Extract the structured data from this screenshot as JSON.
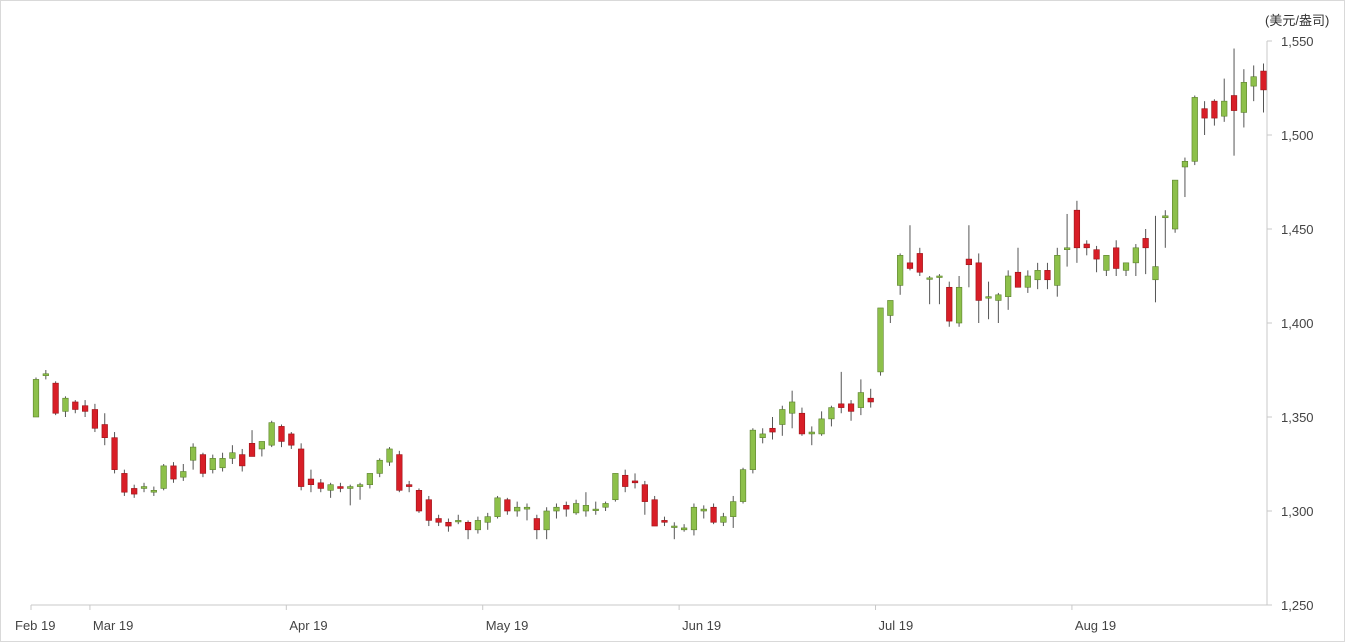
{
  "chart_data": {
    "type": "candlestick",
    "unit_label": "(美元/盎司)",
    "title": "",
    "xlabel": "",
    "ylabel": "",
    "ylim": [
      1250,
      1550
    ],
    "yticks": [
      1250,
      1300,
      1350,
      1400,
      1450,
      1500,
      1550
    ],
    "ytick_labels": [
      "1,250",
      "1,300",
      "1,350",
      "1,400",
      "1,450",
      "1,500",
      "1,550"
    ],
    "xtick_labels": [
      "Feb 19",
      "Mar 19",
      "Apr 19",
      "May 19",
      "Jun 19",
      "Jul 19",
      "Aug 19"
    ],
    "xtick_index": [
      0,
      6,
      26,
      46,
      66,
      86,
      106
    ],
    "colors": {
      "up": "#8dc04a",
      "down": "#d81e27",
      "wick": "#555555",
      "axis": "#c8c8c8"
    },
    "candles": [
      [
        1350,
        1371,
        1350,
        1370
      ],
      [
        1372,
        1375,
        1370,
        1373
      ],
      [
        1368,
        1369,
        1351,
        1352
      ],
      [
        1353,
        1361,
        1350,
        1360
      ],
      [
        1358,
        1359,
        1352,
        1354
      ],
      [
        1356,
        1359,
        1350,
        1353
      ],
      [
        1354,
        1357,
        1342,
        1344
      ],
      [
        1346,
        1352,
        1335,
        1339
      ],
      [
        1339,
        1342,
        1320,
        1322
      ],
      [
        1320,
        1322,
        1308,
        1310
      ],
      [
        1312,
        1314,
        1307,
        1309
      ],
      [
        1312,
        1315,
        1310,
        1313
      ],
      [
        1310,
        1313,
        1308,
        1311
      ],
      [
        1312,
        1325,
        1311,
        1324
      ],
      [
        1324,
        1326,
        1315,
        1317
      ],
      [
        1318,
        1325,
        1316,
        1321
      ],
      [
        1327,
        1336,
        1322,
        1334
      ],
      [
        1330,
        1331,
        1318,
        1320
      ],
      [
        1322,
        1330,
        1320,
        1328
      ],
      [
        1323,
        1331,
        1321,
        1328
      ],
      [
        1328,
        1335,
        1325,
        1331
      ],
      [
        1330,
        1333,
        1321,
        1324
      ],
      [
        1336,
        1343,
        1329,
        1329
      ],
      [
        1333,
        1337,
        1329,
        1337
      ],
      [
        1335,
        1348,
        1334,
        1347
      ],
      [
        1345,
        1346,
        1334,
        1337
      ],
      [
        1341,
        1342,
        1333,
        1335
      ],
      [
        1333,
        1336,
        1311,
        1313
      ],
      [
        1317,
        1322,
        1310,
        1314
      ],
      [
        1315,
        1317,
        1310,
        1312
      ],
      [
        1311,
        1315,
        1307,
        1314
      ],
      [
        1313,
        1315,
        1310,
        1312
      ],
      [
        1312,
        1314,
        1303,
        1313
      ],
      [
        1313,
        1315,
        1306,
        1314
      ],
      [
        1314,
        1320,
        1312,
        1320
      ],
      [
        1320,
        1328,
        1318,
        1327
      ],
      [
        1326,
        1334,
        1324,
        1333
      ],
      [
        1330,
        1332,
        1310,
        1311
      ],
      [
        1314,
        1316,
        1310,
        1313
      ],
      [
        1311,
        1312,
        1299,
        1300
      ],
      [
        1306,
        1308,
        1292,
        1295
      ],
      [
        1296,
        1298,
        1292,
        1294
      ],
      [
        1294,
        1296,
        1289,
        1292
      ],
      [
        1295,
        1298,
        1293,
        1295
      ],
      [
        1294,
        1295,
        1285,
        1290
      ],
      [
        1290,
        1297,
        1288,
        1295
      ],
      [
        1294,
        1299,
        1290,
        1297
      ],
      [
        1297,
        1308,
        1296,
        1307
      ],
      [
        1306,
        1307,
        1298,
        1300
      ],
      [
        1300,
        1305,
        1297,
        1302
      ],
      [
        1301,
        1304,
        1295,
        1302
      ],
      [
        1296,
        1298,
        1285,
        1290
      ],
      [
        1290,
        1302,
        1285,
        1300
      ],
      [
        1300,
        1304,
        1296,
        1302
      ],
      [
        1303,
        1305,
        1297,
        1301
      ],
      [
        1299,
        1306,
        1298,
        1304
      ],
      [
        1300,
        1310,
        1297,
        1303
      ],
      [
        1301,
        1305,
        1298,
        1301
      ],
      [
        1302,
        1305,
        1300,
        1304
      ],
      [
        1306,
        1320,
        1305,
        1320
      ],
      [
        1319,
        1322,
        1310,
        1313
      ],
      [
        1316,
        1320,
        1312,
        1315
      ],
      [
        1314,
        1316,
        1298,
        1305
      ],
      [
        1306,
        1308,
        1292,
        1292
      ],
      [
        1295,
        1297,
        1292,
        1294
      ],
      [
        1292,
        1294,
        1285,
        1292
      ],
      [
        1290,
        1293,
        1289,
        1291
      ],
      [
        1290,
        1304,
        1287,
        1302
      ],
      [
        1300,
        1303,
        1296,
        1301
      ],
      [
        1302,
        1304,
        1293,
        1294
      ],
      [
        1294,
        1299,
        1292,
        1297
      ],
      [
        1297,
        1308,
        1291,
        1305
      ],
      [
        1305,
        1323,
        1304,
        1322
      ],
      [
        1322,
        1344,
        1320,
        1343
      ],
      [
        1339,
        1344,
        1336,
        1341
      ],
      [
        1344,
        1350,
        1338,
        1342
      ],
      [
        1346,
        1356,
        1340,
        1354
      ],
      [
        1352,
        1364,
        1344,
        1358
      ],
      [
        1352,
        1355,
        1340,
        1341
      ],
      [
        1341,
        1345,
        1335,
        1342
      ],
      [
        1341,
        1353,
        1340,
        1349
      ],
      [
        1349,
        1356,
        1345,
        1355
      ],
      [
        1357,
        1374,
        1352,
        1355
      ],
      [
        1357,
        1359,
        1348,
        1353
      ],
      [
        1355,
        1370,
        1351,
        1363
      ],
      [
        1360,
        1365,
        1355,
        1358
      ],
      [
        1374,
        1408,
        1372,
        1408
      ],
      [
        1404,
        1412,
        1400,
        1412
      ],
      [
        1420,
        1437,
        1415,
        1436
      ],
      [
        1432,
        1452,
        1428,
        1429
      ],
      [
        1437,
        1440,
        1425,
        1427
      ],
      [
        1424,
        1425,
        1410,
        1424
      ],
      [
        1425,
        1426,
        1410,
        1425
      ],
      [
        1419,
        1422,
        1398,
        1401
      ],
      [
        1400,
        1425,
        1398,
        1419
      ],
      [
        1434,
        1452,
        1419,
        1431
      ],
      [
        1432,
        1437,
        1400,
        1412
      ],
      [
        1414,
        1422,
        1402,
        1414
      ],
      [
        1412,
        1416,
        1400,
        1415
      ],
      [
        1414,
        1428,
        1407,
        1425
      ],
      [
        1427,
        1440,
        1421,
        1419
      ],
      [
        1419,
        1428,
        1416,
        1425
      ],
      [
        1423,
        1432,
        1418,
        1428
      ],
      [
        1428,
        1432,
        1418,
        1423
      ],
      [
        1420,
        1440,
        1414,
        1436
      ],
      [
        1439,
        1458,
        1430,
        1440
      ],
      [
        1460,
        1465,
        1432,
        1440
      ],
      [
        1442,
        1444,
        1436,
        1440
      ],
      [
        1439,
        1441,
        1427,
        1434
      ],
      [
        1428,
        1436,
        1425,
        1436
      ],
      [
        1440,
        1444,
        1425,
        1429
      ],
      [
        1428,
        1432,
        1425,
        1432
      ],
      [
        1432,
        1442,
        1425,
        1440
      ],
      [
        1445,
        1450,
        1426,
        1440
      ],
      [
        1423,
        1457,
        1411,
        1430
      ],
      [
        1456,
        1460,
        1440,
        1457
      ],
      [
        1450,
        1476,
        1448,
        1476
      ],
      [
        1483,
        1488,
        1467,
        1486
      ],
      [
        1486,
        1521,
        1484,
        1520
      ],
      [
        1514,
        1518,
        1500,
        1509
      ],
      [
        1518,
        1519,
        1505,
        1509
      ],
      [
        1510,
        1530,
        1507,
        1518
      ],
      [
        1521,
        1546,
        1489,
        1513
      ],
      [
        1512,
        1535,
        1504,
        1528
      ],
      [
        1526,
        1537,
        1518,
        1531
      ],
      [
        1534,
        1538,
        1512,
        1524
      ]
    ]
  }
}
